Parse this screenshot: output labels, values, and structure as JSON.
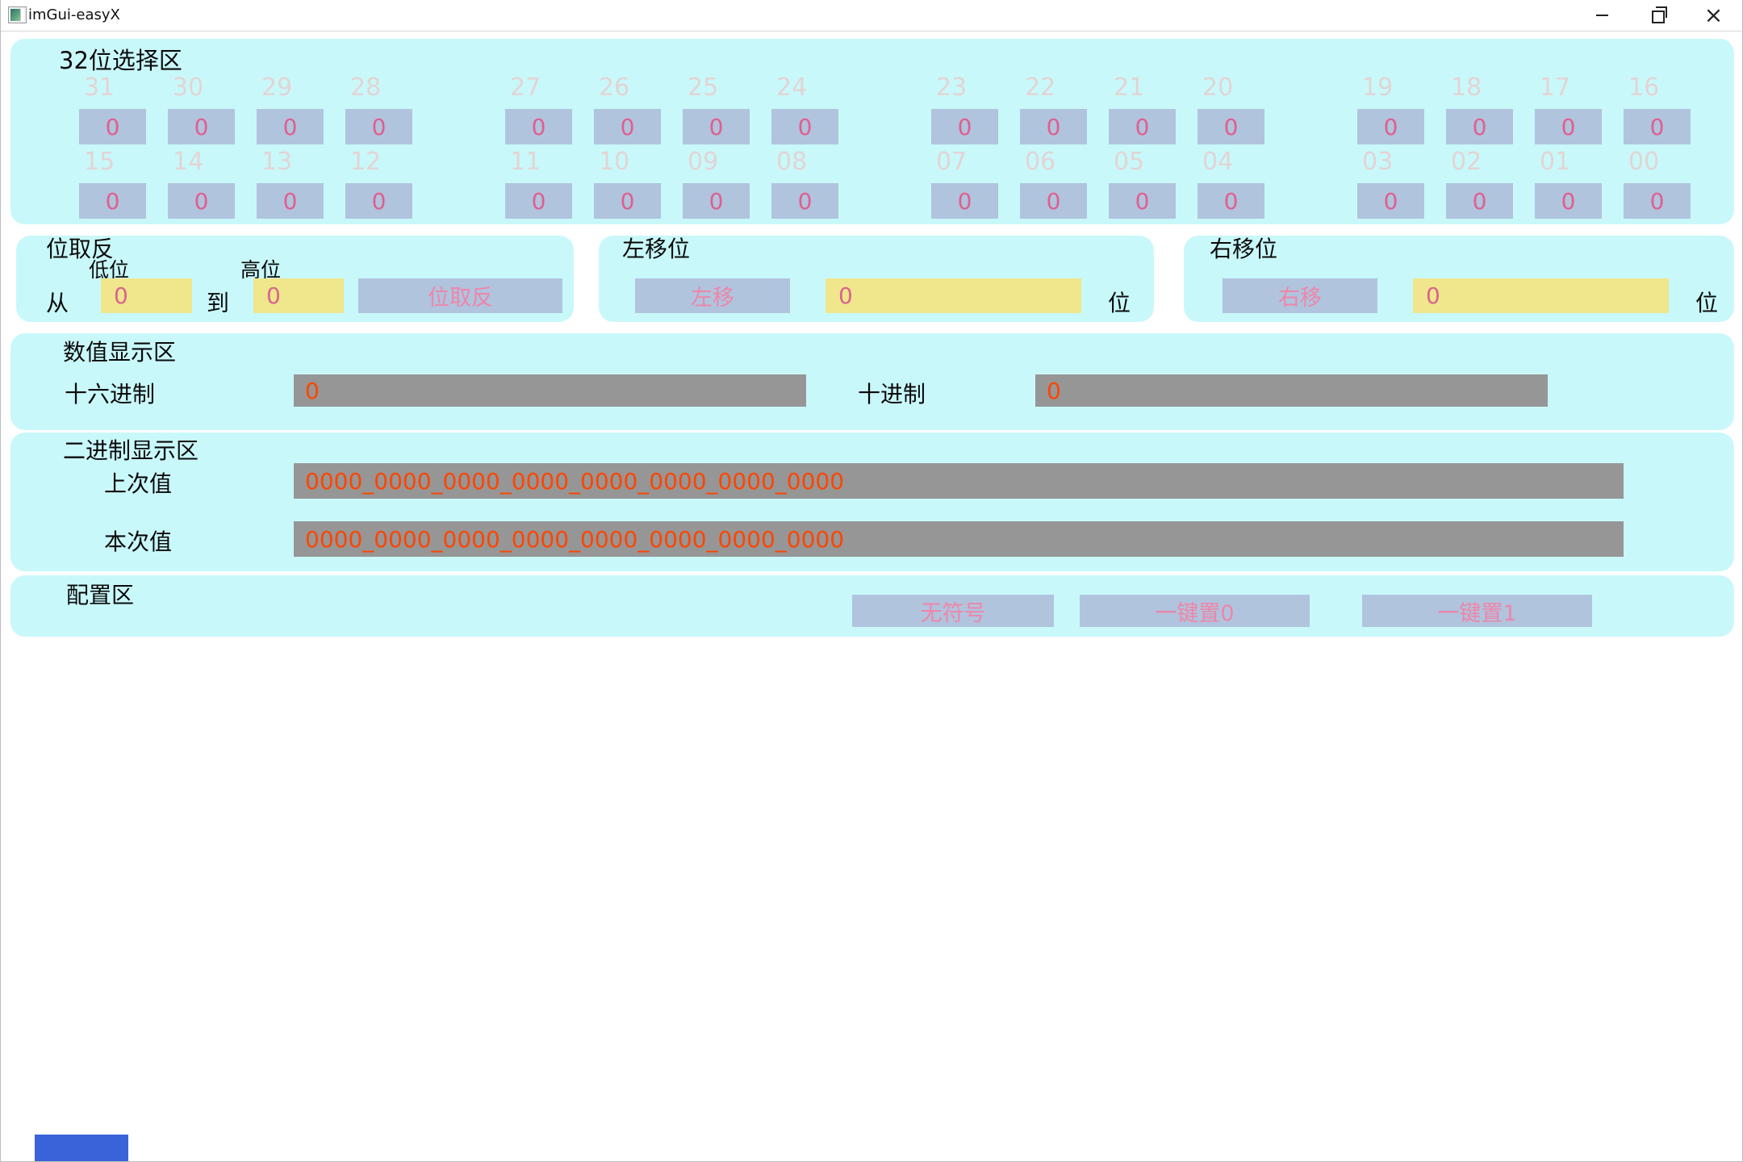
{
  "window": {
    "title": "imGui-easyX",
    "controls": {
      "close_glyph": "×"
    }
  },
  "colors": {
    "panel_bg": "#c9f8fa",
    "button_bg": "#b0c4de",
    "button_text_pink": "#ee86a9",
    "digit_pink": "#e05f8e",
    "input_bg": "#f0e68c",
    "display_field_bg": "#969696",
    "display_field_text": "#ff4500",
    "bit_label_gray": "#e3d4d4",
    "bottom_rect_blue": "#3b63d9"
  },
  "bit_area": {
    "title": "32位选择区",
    "rows": [
      {
        "bits": [
          {
            "label": "31",
            "value": "0"
          },
          {
            "label": "30",
            "value": "0"
          },
          {
            "label": "29",
            "value": "0"
          },
          {
            "label": "28",
            "value": "0"
          },
          {
            "label": "27",
            "value": "0"
          },
          {
            "label": "26",
            "value": "0"
          },
          {
            "label": "25",
            "value": "0"
          },
          {
            "label": "24",
            "value": "0"
          },
          {
            "label": "23",
            "value": "0"
          },
          {
            "label": "22",
            "value": "0"
          },
          {
            "label": "21",
            "value": "0"
          },
          {
            "label": "20",
            "value": "0"
          },
          {
            "label": "19",
            "value": "0"
          },
          {
            "label": "18",
            "value": "0"
          },
          {
            "label": "17",
            "value": "0"
          },
          {
            "label": "16",
            "value": "0"
          }
        ]
      },
      {
        "bits": [
          {
            "label": "15",
            "value": "0"
          },
          {
            "label": "14",
            "value": "0"
          },
          {
            "label": "13",
            "value": "0"
          },
          {
            "label": "12",
            "value": "0"
          },
          {
            "label": "11",
            "value": "0"
          },
          {
            "label": "10",
            "value": "0"
          },
          {
            "label": "09",
            "value": "0"
          },
          {
            "label": "08",
            "value": "0"
          },
          {
            "label": "07",
            "value": "0"
          },
          {
            "label": "06",
            "value": "0"
          },
          {
            "label": "05",
            "value": "0"
          },
          {
            "label": "04",
            "value": "0"
          },
          {
            "label": "03",
            "value": "0"
          },
          {
            "label": "02",
            "value": "0"
          },
          {
            "label": "01",
            "value": "0"
          },
          {
            "label": "00",
            "value": "0"
          }
        ]
      }
    ]
  },
  "invert_panel": {
    "title": "位取反",
    "low_label": "低位",
    "high_label": "高位",
    "from_label": "从",
    "to_label": "到",
    "low_value": "0",
    "high_value": "0",
    "button_label": "位取反"
  },
  "left_shift_panel": {
    "title": "左移位",
    "button_label": "左移",
    "value": "0",
    "unit_label": "位"
  },
  "right_shift_panel": {
    "title": "右移位",
    "button_label": "右移",
    "value": "0",
    "unit_label": "位"
  },
  "value_panel": {
    "title": "数值显示区",
    "hex_label": "十六进制",
    "hex_value": "0",
    "dec_label": "十进制",
    "dec_value": "0"
  },
  "binary_panel": {
    "title": "二进制显示区",
    "prev_label": "上次值",
    "prev_value": "0000_0000_0000_0000_0000_0000_0000_0000",
    "curr_label": "本次值",
    "curr_value": "0000_0000_0000_0000_0000_0000_0000_0000"
  },
  "config_panel": {
    "title": "配置区",
    "buttons": [
      {
        "label": "无符号"
      },
      {
        "label": "一键置0"
      },
      {
        "label": "一键置1"
      }
    ]
  }
}
